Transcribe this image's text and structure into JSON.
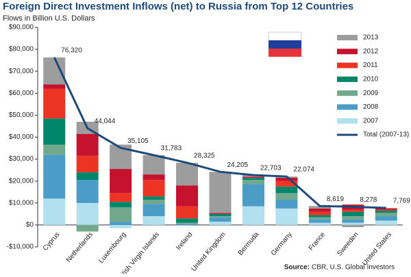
{
  "chart_data": {
    "type": "bar",
    "stacked": true,
    "title": "Foreign Direct Investment Inflows (net) to Russia from Top 12 Countries",
    "subtitle": "Flows in Billion U.S. Dollars",
    "source_label": "Source:",
    "source": "CBR, U.S. Global Investors",
    "categories": [
      "Cyprus",
      "Netherlands",
      "Luxembourg",
      "British Virgin Islands",
      "Ireland",
      "United Kingdom",
      "Bermuda",
      "Germany",
      "France",
      "Sweeden",
      "United States"
    ],
    "series": [
      {
        "name": "2013",
        "color": "#9d9d9d",
        "values": [
          12300,
          5500,
          11100,
          8783,
          10300,
          18700,
          700,
          574,
          1119,
          -1000,
          269
        ]
      },
      {
        "name": "2012",
        "color": "#c4122f",
        "values": [
          2000,
          10000,
          11000,
          2500,
          9500,
          500,
          500,
          1500,
          1500,
          2278,
          500
        ]
      },
      {
        "name": "2011",
        "color": "#ec3425",
        "values": [
          13500,
          7500,
          4000,
          7500,
          5500,
          0,
          0,
          2500,
          1500,
          1000,
          500
        ]
      },
      {
        "name": "2010",
        "color": "#00876b",
        "values": [
          12000,
          3500,
          2500,
          1500,
          2000,
          1000,
          1000,
          3000,
          1000,
          2000,
          1000
        ]
      },
      {
        "name": "2009",
        "color": "#72a98c",
        "values": [
          4500,
          -3000,
          6500,
          2000,
          500,
          500,
          2000,
          3000,
          1000,
          1500,
          1500
        ]
      },
      {
        "name": "2008",
        "color": "#4b9cc7",
        "values": [
          20000,
          10500,
          1500,
          5500,
          500,
          2000,
          10000,
          4000,
          1500,
          1500,
          2000
        ]
      },
      {
        "name": "2007",
        "color": "#b3e0ef",
        "values": [
          12000,
          10000,
          -1500,
          4000,
          0,
          1500,
          8500,
          7500,
          1000,
          1000,
          2000
        ]
      },
      {
        "name": "Total (2007-13)",
        "type": "line",
        "color": "#1d4a7a",
        "values": [
          76320,
          44044,
          35105,
          31783,
          28325,
          24205,
          22703,
          22074,
          8619,
          8278,
          7769
        ],
        "value_labels": [
          "76,320",
          "44,044",
          "35,105",
          "31,783",
          "28,325",
          "24,205",
          "22,703",
          "22,074",
          "8,619",
          "8,278",
          "7,769"
        ]
      }
    ],
    "ylim": [
      -10000,
      90000
    ],
    "yticks": [
      {
        "value": -10000,
        "label": "-$10,000"
      },
      {
        "value": 0,
        "label": "$0"
      },
      {
        "value": 10000,
        "label": "$10,000"
      },
      {
        "value": 20000,
        "label": "$20,000"
      },
      {
        "value": 30000,
        "label": "$30,000"
      },
      {
        "value": 40000,
        "label": "$40,000"
      },
      {
        "value": 50000,
        "label": "$50,000"
      },
      {
        "value": 60000,
        "label": "$60,000"
      },
      {
        "value": 70000,
        "label": "$70,000"
      },
      {
        "value": 80000,
        "label": "$80,000"
      },
      {
        "value": 90000,
        "label": "$90,000"
      }
    ],
    "grid": false
  }
}
